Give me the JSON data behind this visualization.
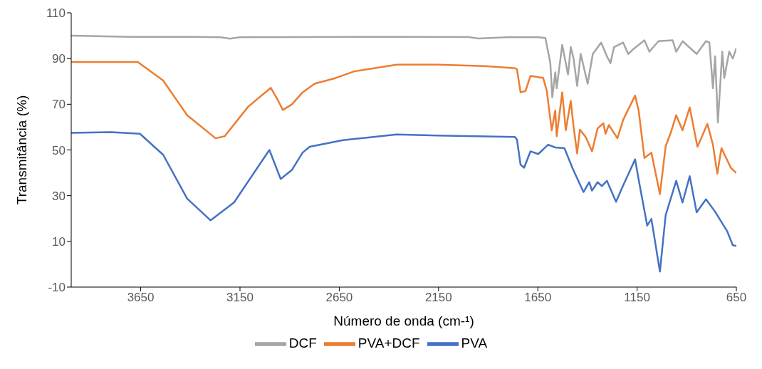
{
  "chart_data": {
    "type": "line",
    "xlabel": "Número de onda (cm-¹)",
    "ylabel": "Transmitância (%)",
    "xlim": [
      4000,
      650
    ],
    "xticks": [
      3650,
      3150,
      2650,
      2150,
      1650,
      1150,
      650
    ],
    "ylim": [
      -10,
      110
    ],
    "yticks": [
      -10,
      10,
      30,
      50,
      70,
      90,
      110
    ],
    "legend": "bottom",
    "marker": "none",
    "line_style": "solid",
    "series": [
      {
        "name": "DCF",
        "color": "#a5a5a5",
        "x": [
          4000,
          3700,
          3400,
          3250,
          3200,
          3150,
          2800,
          2400,
          2000,
          1950,
          1800,
          1650,
          1612,
          1587,
          1577,
          1562,
          1555,
          1527,
          1498,
          1484,
          1470,
          1452,
          1434,
          1399,
          1373,
          1331,
          1302,
          1284,
          1266,
          1220,
          1195,
          1170,
          1113,
          1088,
          1042,
          971,
          953,
          921,
          850,
          803,
          786,
          768,
          757,
          743,
          721,
          711,
          686,
          668,
          650
        ],
        "values": [
          100,
          99.5,
          99.5,
          99.3,
          98.7,
          99.3,
          99.4,
          99.5,
          99.4,
          98.8,
          99.3,
          99.3,
          99,
          88,
          73,
          84,
          77,
          96,
          83,
          95,
          90,
          78,
          92,
          79,
          92,
          97,
          91,
          88,
          95,
          97,
          92,
          94,
          98,
          93,
          97.6,
          98,
          93,
          97.6,
          92,
          97.6,
          97,
          77,
          91,
          62,
          93,
          81.5,
          93,
          90,
          94.5
        ]
      },
      {
        "name": "PVA+DCF",
        "color": "#ed7d31",
        "x": [
          4000,
          3800,
          3665,
          3537,
          3416,
          3273,
          3227,
          3109,
          2995,
          2966,
          2934,
          2888,
          2835,
          2774,
          2667,
          2574,
          2361,
          2157,
          1919,
          1765,
          1755,
          1737,
          1712,
          1687,
          1623,
          1605,
          1580,
          1562,
          1555,
          1527,
          1509,
          1484,
          1470,
          1452,
          1438,
          1409,
          1377,
          1349,
          1320,
          1309,
          1292,
          1249,
          1220,
          1160,
          1142,
          1113,
          1078,
          1035,
          1006,
          981,
          953,
          921,
          885,
          846,
          796,
          768,
          746,
          725,
          678,
          650
        ],
        "values": [
          88.5,
          88.5,
          88.5,
          80.4,
          65.2,
          55.1,
          56,
          68.9,
          77.2,
          72.9,
          67.5,
          70,
          75.2,
          79,
          81.5,
          84.4,
          87.3,
          87.3,
          86.7,
          85.8,
          85.3,
          75.2,
          75.8,
          82.4,
          81.5,
          76,
          58.6,
          67.2,
          56,
          75.2,
          58.6,
          71.5,
          60.3,
          48.5,
          58.9,
          55.7,
          49.4,
          59.4,
          61.7,
          57.1,
          60.9,
          55.1,
          63.2,
          73.8,
          67.2,
          46.5,
          48.8,
          30.7,
          51.7,
          57.4,
          65.2,
          58.6,
          68.6,
          51.4,
          61.4,
          52.3,
          39.6,
          50.8,
          42.2,
          39.9
        ]
      },
      {
        "name": "PVA",
        "color": "#4472c4",
        "x": [
          4000,
          3800,
          3654,
          3537,
          3416,
          3298,
          3180,
          3002,
          2945,
          2888,
          2835,
          2799,
          2631,
          2361,
          2157,
          1765,
          1755,
          1737,
          1719,
          1687,
          1648,
          1598,
          1562,
          1516,
          1473,
          1420,
          1391,
          1377,
          1349,
          1327,
          1302,
          1256,
          1220,
          1160,
          1142,
          1099,
          1078,
          1035,
          1006,
          953,
          921,
          885,
          850,
          803,
          757,
          696,
          668,
          650
        ],
        "values": [
          57.5,
          57.8,
          57.1,
          47.9,
          28.7,
          19.2,
          27,
          50,
          37.3,
          41.3,
          48.8,
          51.4,
          54.3,
          56.8,
          56.3,
          55.7,
          54.5,
          43.6,
          42.2,
          49.4,
          48.2,
          52.3,
          51.1,
          50.8,
          41.6,
          31.6,
          35.9,
          32.2,
          35.9,
          34.2,
          36.5,
          27.3,
          34.5,
          45.9,
          37,
          16.9,
          19.8,
          -3.2,
          21.5,
          36.5,
          27,
          38.5,
          22.7,
          28.4,
          23,
          14.4,
          8.3,
          8
        ]
      }
    ]
  }
}
